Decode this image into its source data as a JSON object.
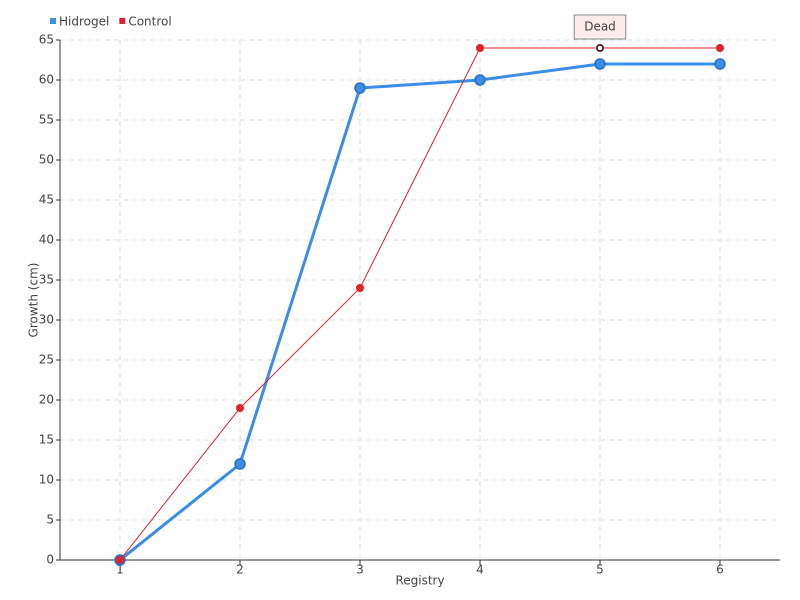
{
  "chart_data": {
    "type": "line",
    "xlabel": "Registry",
    "ylabel": "Growth (cm)",
    "x": [
      1,
      2,
      3,
      4,
      5,
      6
    ],
    "xlim": [
      0.5,
      6.5
    ],
    "xticks": [
      1,
      2,
      3,
      4,
      5,
      6
    ],
    "ylim": [
      0,
      65
    ],
    "yticks": [
      0,
      5,
      10,
      15,
      20,
      25,
      30,
      35,
      40,
      45,
      50,
      55,
      60,
      65
    ],
    "grid": true,
    "legend": "top-left",
    "series": [
      {
        "name": "Hidrogel",
        "color": "#3a8ee6",
        "values": [
          0,
          12,
          59,
          60,
          62,
          62
        ]
      },
      {
        "name": "Control",
        "color": "#e3212b",
        "values": [
          0,
          19,
          34,
          64,
          64,
          64
        ]
      }
    ],
    "annotations": [
      {
        "text": "Dead",
        "x": 5,
        "y": 64
      }
    ]
  }
}
